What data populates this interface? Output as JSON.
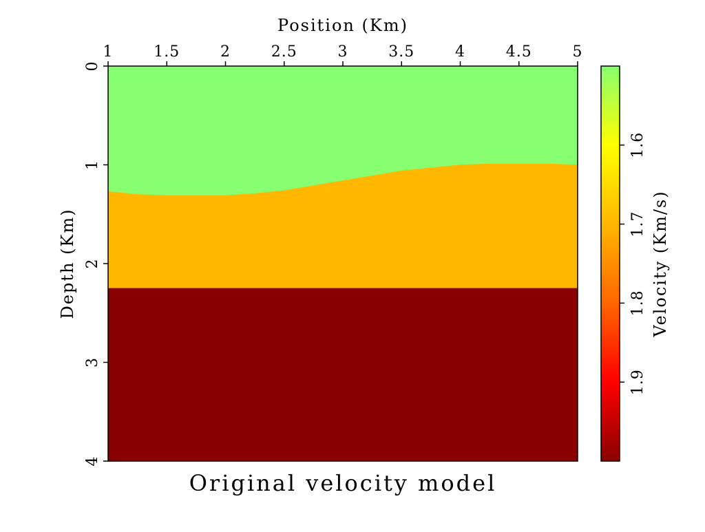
{
  "chart_data": {
    "type": "heatmap",
    "title": "Original velocity model",
    "xlabel": "Position (Km)",
    "ylabel": "Depth (Km)",
    "xlim": [
      1,
      5
    ],
    "ylim": [
      0,
      4
    ],
    "x_ticks": [
      {
        "value": 1,
        "label": "1"
      },
      {
        "value": 1.5,
        "label": "1.5"
      },
      {
        "value": 2,
        "label": "2"
      },
      {
        "value": 2.5,
        "label": "2.5"
      },
      {
        "value": 3,
        "label": "3"
      },
      {
        "value": 3.5,
        "label": "3.5"
      },
      {
        "value": 4,
        "label": "4"
      },
      {
        "value": 4.5,
        "label": "4.5"
      },
      {
        "value": 5,
        "label": "5"
      }
    ],
    "y_ticks": [
      {
        "value": 0,
        "label": "0"
      },
      {
        "value": 1,
        "label": "1"
      },
      {
        "value": 2,
        "label": "2"
      },
      {
        "value": 3,
        "label": "3"
      },
      {
        "value": 4,
        "label": "4"
      }
    ],
    "y_axis_direction": "depth increases downward",
    "layers": [
      {
        "velocity": 1.53,
        "color": "#88ff70",
        "top": "surface",
        "bottom": "interface-1"
      },
      {
        "velocity": 1.69,
        "color": "#ffb700",
        "top": "interface-1",
        "bottom": "interface-2"
      },
      {
        "velocity": 1.99,
        "color": "#880000",
        "top": "interface-2",
        "bottom": "model-bottom"
      }
    ],
    "interfaces": [
      {
        "id": "interface-1",
        "x": [
          1.0,
          1.25,
          1.5,
          1.75,
          2.0,
          2.25,
          2.5,
          2.75,
          3.0,
          3.25,
          3.5,
          3.75,
          4.0,
          4.25,
          4.5,
          4.75,
          5.0
        ],
        "depth": [
          1.27,
          1.3,
          1.31,
          1.31,
          1.31,
          1.29,
          1.26,
          1.21,
          1.16,
          1.11,
          1.06,
          1.03,
          1.0,
          0.99,
          0.99,
          0.99,
          1.0
        ]
      },
      {
        "id": "interface-2",
        "x": [
          1.0,
          5.0
        ],
        "depth": [
          2.25,
          2.25
        ]
      }
    ],
    "colorbar": {
      "label": "Velocity (Km/s)",
      "range": [
        1.5,
        2.0
      ],
      "direction": "low velocity at top",
      "ticks": [
        {
          "value": 1.6,
          "label": "1.6"
        },
        {
          "value": 1.7,
          "label": "1.7"
        },
        {
          "value": 1.8,
          "label": "1.8"
        },
        {
          "value": 1.9,
          "label": "1.9"
        }
      ],
      "colormap": [
        {
          "value": 1.5,
          "color": "#88ff70"
        },
        {
          "value": 1.6,
          "color": "#ffff00"
        },
        {
          "value": 1.7,
          "color": "#ffb700"
        },
        {
          "value": 1.8,
          "color": "#ff6600"
        },
        {
          "value": 1.9,
          "color": "#ff0000"
        },
        {
          "value": 2.0,
          "color": "#880000"
        }
      ]
    },
    "grid": false,
    "legend": "colorbar-right"
  }
}
